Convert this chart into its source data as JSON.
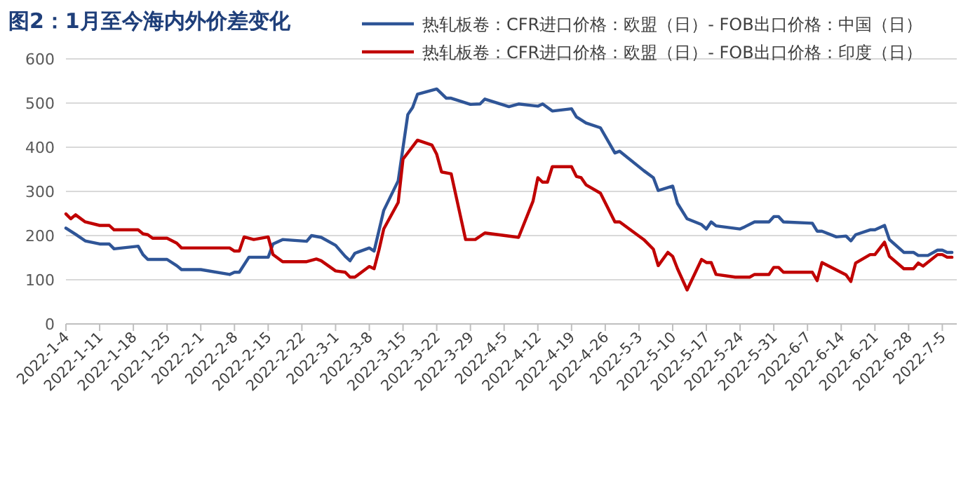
{
  "chart_data": {
    "type": "line",
    "title": "图2：1月至今海内外价差变化",
    "series": [
      {
        "name": "热轧板卷：CFR进口价格：欧盟（日）- FOB出口价格：中国（日）",
        "color": "#2f5597",
        "x": [
          "2022-01-04",
          "2022-01-06",
          "2022-01-08",
          "2022-01-11",
          "2022-01-13",
          "2022-01-14",
          "2022-01-19",
          "2022-01-20",
          "2022-01-21",
          "2022-01-25",
          "2022-01-27",
          "2022-01-28",
          "2022-02-01",
          "2022-02-07",
          "2022-02-08",
          "2022-02-09",
          "2022-02-11",
          "2022-02-15",
          "2022-02-16",
          "2022-02-18",
          "2022-02-23",
          "2022-02-24",
          "2022-02-26",
          "2022-03-01",
          "2022-03-03",
          "2022-03-04",
          "2022-03-05",
          "2022-03-08",
          "2022-03-09",
          "2022-03-11",
          "2022-03-14",
          "2022-03-16",
          "2022-03-17",
          "2022-03-18",
          "2022-03-22",
          "2022-03-24",
          "2022-03-25",
          "2022-03-29",
          "2022-03-31",
          "2022-04-01",
          "2022-04-06",
          "2022-04-08",
          "2022-04-12",
          "2022-04-13",
          "2022-04-14",
          "2022-04-15",
          "2022-04-19",
          "2022-04-20",
          "2022-04-22",
          "2022-04-25",
          "2022-04-28",
          "2022-04-29",
          "2022-05-04",
          "2022-05-06",
          "2022-05-07",
          "2022-05-10",
          "2022-05-11",
          "2022-05-13",
          "2022-05-16",
          "2022-05-17",
          "2022-05-18",
          "2022-05-19",
          "2022-05-24",
          "2022-05-25",
          "2022-05-27",
          "2022-05-30",
          "2022-05-31",
          "2022-06-01",
          "2022-06-02",
          "2022-06-08",
          "2022-06-09",
          "2022-06-10",
          "2022-06-13",
          "2022-06-15",
          "2022-06-16",
          "2022-06-17",
          "2022-06-20",
          "2022-06-21",
          "2022-06-23",
          "2022-06-24",
          "2022-06-27",
          "2022-06-29",
          "2022-06-30",
          "2022-07-02",
          "2022-07-04",
          "2022-07-05",
          "2022-07-06",
          "2022-07-07"
        ],
        "values": [
          217,
          203,
          188,
          181,
          181,
          170,
          176,
          157,
          146,
          146,
          132,
          123,
          123,
          112,
          117,
          117,
          151,
          151,
          181,
          191,
          187,
          200,
          196,
          178,
          153,
          143,
          160,
          172,
          165,
          257,
          324,
          474,
          490,
          520,
          532,
          511,
          511,
          497,
          498,
          509,
          492,
          498,
          493,
          498,
          490,
          482,
          487,
          469,
          455,
          444,
          387,
          391,
          347,
          331,
          302,
          312,
          273,
          238,
          225,
          215,
          231,
          222,
          215,
          220,
          231,
          231,
          243,
          243,
          231,
          228,
          210,
          210,
          197,
          199,
          188,
          202,
          213,
          213,
          223,
          191,
          162,
          162,
          155,
          155,
          167,
          167,
          162,
          162
        ]
      },
      {
        "name": "热轧板卷：CFR进口价格：欧盟（日）- FOB出口价格：印度（日）",
        "color": "#c00000",
        "x": [
          "2022-01-04",
          "2022-01-05",
          "2022-01-06",
          "2022-01-08",
          "2022-01-11",
          "2022-01-13",
          "2022-01-14",
          "2022-01-19",
          "2022-01-20",
          "2022-01-21",
          "2022-01-22",
          "2022-01-25",
          "2022-01-27",
          "2022-01-28",
          "2022-02-07",
          "2022-02-08",
          "2022-02-09",
          "2022-02-10",
          "2022-02-12",
          "2022-02-15",
          "2022-02-16",
          "2022-02-18",
          "2022-02-23",
          "2022-02-25",
          "2022-02-26",
          "2022-03-01",
          "2022-03-03",
          "2022-03-04",
          "2022-03-05",
          "2022-03-08",
          "2022-03-09",
          "2022-03-10",
          "2022-03-11",
          "2022-03-14",
          "2022-03-15",
          "2022-03-18",
          "2022-03-21",
          "2022-03-22",
          "2022-03-23",
          "2022-03-25",
          "2022-03-28",
          "2022-03-30",
          "2022-04-01",
          "2022-04-08",
          "2022-04-11",
          "2022-04-12",
          "2022-04-13",
          "2022-04-14",
          "2022-04-15",
          "2022-04-19",
          "2022-04-20",
          "2022-04-21",
          "2022-04-22",
          "2022-04-25",
          "2022-04-28",
          "2022-04-29",
          "2022-05-04",
          "2022-05-06",
          "2022-05-07",
          "2022-05-09",
          "2022-05-10",
          "2022-05-11",
          "2022-05-13",
          "2022-05-16",
          "2022-05-17",
          "2022-05-18",
          "2022-05-19",
          "2022-05-23",
          "2022-05-26",
          "2022-05-27",
          "2022-05-30",
          "2022-05-31",
          "2022-06-01",
          "2022-06-02",
          "2022-06-08",
          "2022-06-09",
          "2022-06-10",
          "2022-06-15",
          "2022-06-16",
          "2022-06-17",
          "2022-06-20",
          "2022-06-21",
          "2022-06-23",
          "2022-06-24",
          "2022-06-27",
          "2022-06-29",
          "2022-06-30",
          "2022-07-01",
          "2022-07-04",
          "2022-07-05",
          "2022-07-06",
          "2022-07-07"
        ],
        "values": [
          249,
          238,
          247,
          231,
          223,
          223,
          213,
          213,
          204,
          202,
          194,
          194,
          183,
          172,
          172,
          165,
          165,
          197,
          191,
          197,
          157,
          141,
          141,
          147,
          143,
          120,
          117,
          106,
          106,
          130,
          125,
          167,
          215,
          275,
          373,
          416,
          405,
          384,
          344,
          340,
          191,
          191,
          206,
          196,
          278,
          331,
          321,
          321,
          356,
          356,
          334,
          331,
          315,
          296,
          231,
          231,
          191,
          169,
          132,
          162,
          153,
          125,
          77,
          146,
          139,
          139,
          112,
          106,
          106,
          112,
          112,
          128,
          128,
          117,
          117,
          98,
          139,
          111,
          96,
          138,
          157,
          157,
          185,
          153,
          125,
          125,
          138,
          131,
          157,
          157,
          151,
          151
        ]
      }
    ],
    "xlim": [
      "2022-01-04",
      "2022-07-08"
    ],
    "xticks": [
      {
        "value": "2022-01-04",
        "label": "2022-1-4"
      },
      {
        "value": "2022-01-11",
        "label": "2022-1-11"
      },
      {
        "value": "2022-01-18",
        "label": "2022-1-18"
      },
      {
        "value": "2022-01-25",
        "label": "2022-1-25"
      },
      {
        "value": "2022-02-01",
        "label": "2022-2-1"
      },
      {
        "value": "2022-02-08",
        "label": "2022-2-8"
      },
      {
        "value": "2022-02-15",
        "label": "2022-2-15"
      },
      {
        "value": "2022-02-22",
        "label": "2022-2-22"
      },
      {
        "value": "2022-03-01",
        "label": "2022-3-1"
      },
      {
        "value": "2022-03-08",
        "label": "2022-3-8"
      },
      {
        "value": "2022-03-15",
        "label": "2022-3-15"
      },
      {
        "value": "2022-03-22",
        "label": "2022-3-22"
      },
      {
        "value": "2022-03-29",
        "label": "2022-3-29"
      },
      {
        "value": "2022-04-05",
        "label": "2022-4-5"
      },
      {
        "value": "2022-04-12",
        "label": "2022-4-12"
      },
      {
        "value": "2022-04-19",
        "label": "2022-4-19"
      },
      {
        "value": "2022-04-26",
        "label": "2022-4-26"
      },
      {
        "value": "2022-05-03",
        "label": "2022-5-3"
      },
      {
        "value": "2022-05-10",
        "label": "2022-5-10"
      },
      {
        "value": "2022-05-17",
        "label": "2022-5-17"
      },
      {
        "value": "2022-05-24",
        "label": "2022-5-24"
      },
      {
        "value": "2022-05-31",
        "label": "2022-5-31"
      },
      {
        "value": "2022-06-07",
        "label": "2022-6-7"
      },
      {
        "value": "2022-06-14",
        "label": "2022-6-14"
      },
      {
        "value": "2022-06-21",
        "label": "2022-6-21"
      },
      {
        "value": "2022-06-28",
        "label": "2022-6-28"
      },
      {
        "value": "2022-07-05",
        "label": "2022-7-5"
      }
    ],
    "ylim": [
      0,
      600
    ],
    "yticks": [
      0,
      100,
      200,
      300,
      400,
      500,
      600
    ],
    "grid": "y",
    "legend": "top right",
    "marker": "none",
    "line_style": "solid"
  }
}
